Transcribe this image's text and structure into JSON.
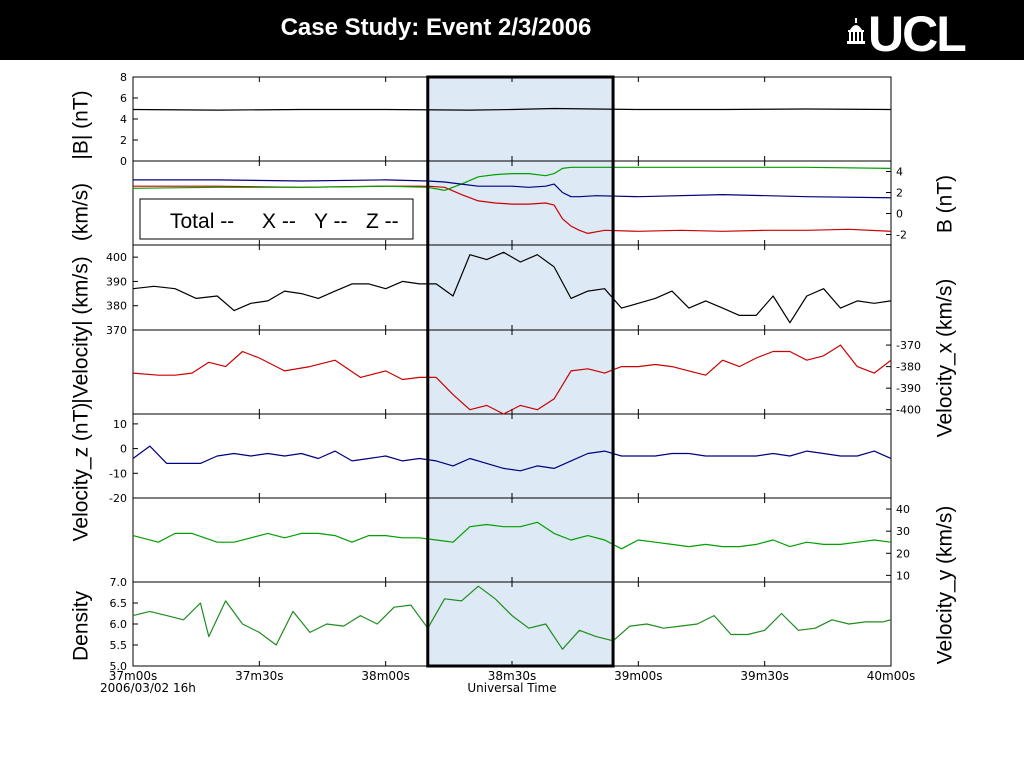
{
  "slide": {
    "title": "Case Study: Event 2/3/2006",
    "logo_text": "UCL",
    "logo_icon": "portico-icon",
    "header_color": "#000000"
  },
  "chart_data": {
    "type": "line",
    "x": {
      "range": [
        0,
        180
      ],
      "unit": "seconds after 2006/03/02 16:37:00",
      "tick_labels": [
        "37m00s",
        "37m30s",
        "38m00s",
        "38m30s",
        "39m00s",
        "39m30s",
        "40m00s"
      ],
      "date_label": "2006/03/02 16h",
      "label": "Universal Time"
    },
    "highlight": {
      "x_range": [
        70,
        114
      ],
      "fill": "#dde9f4"
    },
    "legend": {
      "entries": [
        {
          "text": "Total --",
          "color": "#000000"
        },
        {
          "text": "X --",
          "color": "#cc0000"
        },
        {
          "text": "Y --",
          "color": "#00a000"
        },
        {
          "text": "Z --",
          "color": "#000080"
        }
      ],
      "placement": "upper-left of panel 2"
    },
    "y_labels": {
      "left": [
        "|B| (nT)",
        "(km/s)",
        "|Velocity| (km/s)",
        "Velocity_z (nT)",
        "Density"
      ],
      "right": [
        "B (nT)",
        "Velocity_x (km/s)",
        "Velocity_y (km/s)"
      ]
    },
    "panels": [
      {
        "name": "|B|",
        "ylim": [
          0,
          8
        ],
        "ticks": [
          "8",
          "6",
          "4",
          "2",
          "0"
        ],
        "tick_side": "left",
        "series": [
          {
            "color": "#000000",
            "x": [
              0,
              20,
              40,
              60,
              80,
              90,
              100,
              120,
              140,
              160,
              180
            ],
            "y": [
              4.9,
              4.85,
              4.9,
              4.9,
              4.85,
              4.9,
              5.0,
              4.9,
              4.9,
              4.95,
              4.9
            ]
          }
        ]
      },
      {
        "name": "B components",
        "ylim": [
          -3,
          5
        ],
        "ticks": [
          "4",
          "2",
          "0",
          "-2"
        ],
        "tick_side": "right",
        "series": [
          {
            "name": "X",
            "color": "#cc0000",
            "x": [
              0,
              20,
              40,
              60,
              70,
              74,
              78,
              82,
              86,
              90,
              94,
              98,
              100,
              102,
              104,
              106,
              108,
              112,
              120,
              130,
              140,
              150,
              160,
              170,
              180
            ],
            "y": [
              2.6,
              2.6,
              2.5,
              2.6,
              2.6,
              2.5,
              1.8,
              1.2,
              1.0,
              0.9,
              0.9,
              1.0,
              0.8,
              -0.5,
              -1.2,
              -1.6,
              -1.9,
              -1.6,
              -1.7,
              -1.6,
              -1.7,
              -1.6,
              -1.6,
              -1.5,
              -1.7
            ]
          },
          {
            "name": "Y",
            "color": "#00a000",
            "x": [
              0,
              20,
              40,
              60,
              70,
              74,
              78,
              82,
              86,
              90,
              94,
              98,
              100,
              102,
              104,
              106,
              110,
              120,
              140,
              160,
              180
            ],
            "y": [
              2.4,
              2.5,
              2.5,
              2.6,
              2.5,
              2.2,
              2.8,
              3.5,
              3.7,
              3.8,
              3.8,
              3.6,
              3.8,
              4.3,
              4.4,
              4.4,
              4.4,
              4.4,
              4.4,
              4.4,
              4.3
            ]
          },
          {
            "name": "Z",
            "color": "#000080",
            "x": [
              0,
              20,
              40,
              60,
              70,
              74,
              78,
              82,
              86,
              90,
              94,
              98,
              100,
              102,
              104,
              106,
              110,
              120,
              140,
              160,
              180
            ],
            "y": [
              3.2,
              3.2,
              3.1,
              3.2,
              3.1,
              3.0,
              2.8,
              2.6,
              2.6,
              2.6,
              2.5,
              2.6,
              2.8,
              2.0,
              1.6,
              1.6,
              1.7,
              1.6,
              1.8,
              1.6,
              1.5
            ]
          }
        ]
      },
      {
        "name": "|Velocity|",
        "ylim": [
          370,
          405
        ],
        "ticks": [
          "400",
          "390",
          "380",
          "370"
        ],
        "tick_side": "left",
        "series": [
          {
            "color": "#000000",
            "x": [
              0,
              5,
              10,
              15,
              20,
              24,
              28,
              32,
              36,
              40,
              44,
              48,
              52,
              56,
              60,
              64,
              68,
              72,
              76,
              80,
              84,
              88,
              92,
              96,
              100,
              104,
              108,
              112,
              116,
              120,
              124,
              128,
              132,
              136,
              140,
              144,
              148,
              152,
              156,
              160,
              164,
              168,
              172,
              176,
              180
            ],
            "y": [
              387,
              388,
              387,
              383,
              384,
              378,
              381,
              382,
              386,
              385,
              383,
              386,
              389,
              389,
              387,
              390,
              389,
              389,
              384,
              401,
              399,
              402,
              398,
              401,
              396,
              383,
              386,
              387,
              379,
              381,
              383,
              386,
              379,
              382,
              379,
              376,
              376,
              384,
              373,
              384,
              387,
              379,
              382,
              381,
              382
            ]
          }
        ]
      },
      {
        "name": "Velocity_x",
        "ylim": [
          -402,
          -363
        ],
        "ticks": [
          "-370",
          "-380",
          "-390",
          "-400"
        ],
        "tick_side": "right",
        "series": [
          {
            "color": "#cc0000",
            "x": [
              0,
              6,
              10,
              14,
              18,
              22,
              26,
              30,
              36,
              42,
              48,
              54,
              60,
              64,
              68,
              72,
              76,
              80,
              84,
              88,
              92,
              96,
              100,
              104,
              108,
              112,
              116,
              120,
              124,
              128,
              132,
              136,
              140,
              144,
              148,
              152,
              156,
              160,
              164,
              168,
              172,
              176,
              180
            ],
            "y": [
              -383,
              -384,
              -384,
              -383,
              -378,
              -380,
              -373,
              -376,
              -382,
              -380,
              -377,
              -385,
              -382,
              -386,
              -385,
              -385,
              -393,
              -400,
              -398,
              -402,
              -398,
              -400,
              -395,
              -382,
              -381,
              -383,
              -380,
              -380,
              -379,
              -380,
              -382,
              -384,
              -377,
              -380,
              -376,
              -373,
              -373,
              -377,
              -375,
              -370,
              -380,
              -383,
              -377
            ]
          }
        ]
      },
      {
        "name": "Velocity_z",
        "ylim": [
          -20,
          14
        ],
        "ticks": [
          "10",
          "0",
          "-10",
          "-20"
        ],
        "tick_side": "left",
        "series": [
          {
            "color": "#000080",
            "x": [
              0,
              4,
              8,
              12,
              16,
              20,
              24,
              28,
              32,
              36,
              40,
              44,
              48,
              52,
              56,
              60,
              64,
              68,
              72,
              76,
              80,
              84,
              88,
              92,
              96,
              100,
              104,
              108,
              112,
              116,
              120,
              124,
              128,
              132,
              136,
              140,
              144,
              148,
              152,
              156,
              160,
              164,
              168,
              172,
              176,
              180
            ],
            "y": [
              -4,
              1,
              -6,
              -6,
              -6,
              -3,
              -2,
              -3,
              -2,
              -3,
              -2,
              -4,
              -1,
              -5,
              -4,
              -3,
              -5,
              -4,
              -5,
              -7,
              -4,
              -6,
              -8,
              -9,
              -7,
              -8,
              -5,
              -2,
              -1,
              -3,
              -3,
              -3,
              -2,
              -2,
              -3,
              -3,
              -3,
              -3,
              -2,
              -3,
              -1,
              -2,
              -3,
              -3,
              -1,
              -4
            ]
          }
        ]
      },
      {
        "name": "Velocity_y",
        "ylim": [
          7,
          45
        ],
        "ticks": [
          "40",
          "30",
          "20",
          "10"
        ],
        "tick_side": "right",
        "series": [
          {
            "color": "#00a000",
            "x": [
              0,
              6,
              10,
              14,
              20,
              24,
              28,
              32,
              36,
              40,
              44,
              48,
              52,
              56,
              60,
              64,
              68,
              72,
              76,
              80,
              84,
              88,
              92,
              96,
              100,
              104,
              108,
              112,
              116,
              120,
              124,
              128,
              132,
              136,
              140,
              144,
              148,
              152,
              156,
              160,
              164,
              168,
              172,
              176,
              180
            ],
            "y": [
              28,
              25,
              29,
              29,
              25,
              25,
              27,
              29,
              27,
              29,
              29,
              28,
              25,
              28,
              28,
              27,
              27,
              26,
              25,
              32,
              33,
              32,
              32,
              34,
              29,
              26,
              28,
              26,
              22,
              26,
              25,
              24,
              23,
              24,
              23,
              23,
              24,
              26,
              23,
              25,
              24,
              24,
              25,
              26,
              25
            ]
          }
        ]
      },
      {
        "name": "Density",
        "ylim": [
          5.0,
          7.0
        ],
        "ticks": [
          "7.0",
          "6.5",
          "6.0",
          "5.5",
          "5.0"
        ],
        "tick_side": "left",
        "series": [
          {
            "color": "#1e8c1e",
            "x": [
              0,
              4,
              8,
              12,
              16,
              18,
              22,
              26,
              30,
              34,
              38,
              42,
              46,
              50,
              54,
              58,
              62,
              66,
              70,
              74,
              78,
              82,
              86,
              90,
              94,
              98,
              102,
              106,
              110,
              114,
              118,
              122,
              126,
              130,
              134,
              138,
              142,
              146,
              150,
              154,
              158,
              162,
              166,
              170,
              174,
              178,
              180
            ],
            "y": [
              6.2,
              6.3,
              6.2,
              6.1,
              6.5,
              5.7,
              6.55,
              6.0,
              5.8,
              5.5,
              6.3,
              5.8,
              6.0,
              5.95,
              6.2,
              6.0,
              6.4,
              6.45,
              5.9,
              6.6,
              6.55,
              6.9,
              6.6,
              6.2,
              5.9,
              6.0,
              5.4,
              5.85,
              5.7,
              5.6,
              5.95,
              6.0,
              5.9,
              5.95,
              6.0,
              6.2,
              5.75,
              5.75,
              5.85,
              6.25,
              5.85,
              5.9,
              6.1,
              6.0,
              6.05,
              6.05,
              6.1
            ]
          }
        ]
      }
    ]
  }
}
